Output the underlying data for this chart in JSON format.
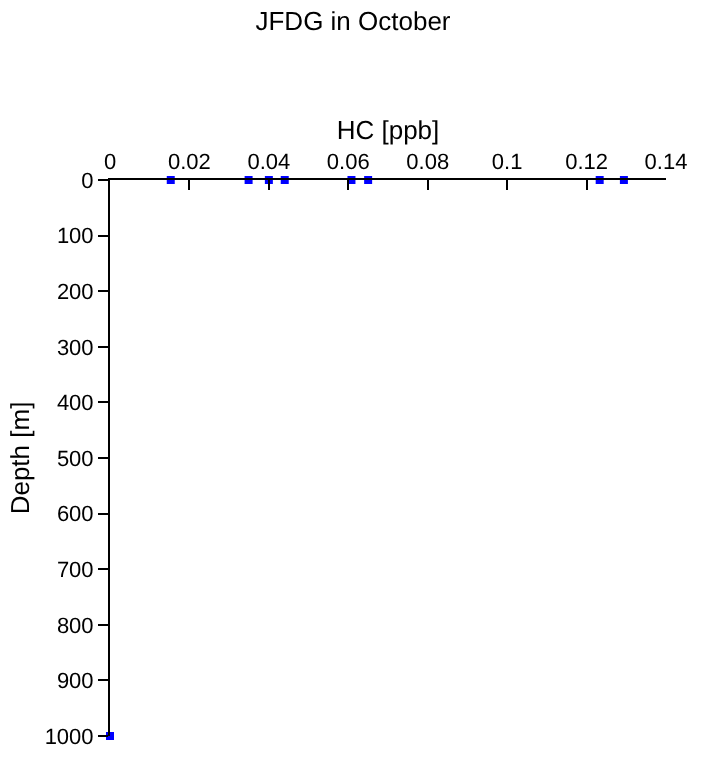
{
  "chart_data": {
    "type": "scatter",
    "title": "JFDG in October",
    "xlabel": "HC [ppb]",
    "ylabel": "Depth [m]",
    "x": [
      0.0153,
      0.0349,
      0.04,
      0.044,
      0.0608,
      0.065,
      0.1233,
      0.1294,
      0
    ],
    "series": [
      {
        "color": "#0000ff",
        "values": [
          0,
          0,
          0,
          0,
          0,
          0,
          0,
          0,
          1000
        ]
      }
    ],
    "xlim": [
      0,
      0.14
    ],
    "xticks": [
      0,
      0.02,
      0.04,
      0.06,
      0.08,
      0.1,
      0.12,
      0.14
    ],
    "ylim": [
      1000,
      0
    ],
    "yticks": [
      0,
      100,
      200,
      300,
      400,
      500,
      600,
      700,
      800,
      900,
      1000
    ],
    "marker": "square"
  }
}
